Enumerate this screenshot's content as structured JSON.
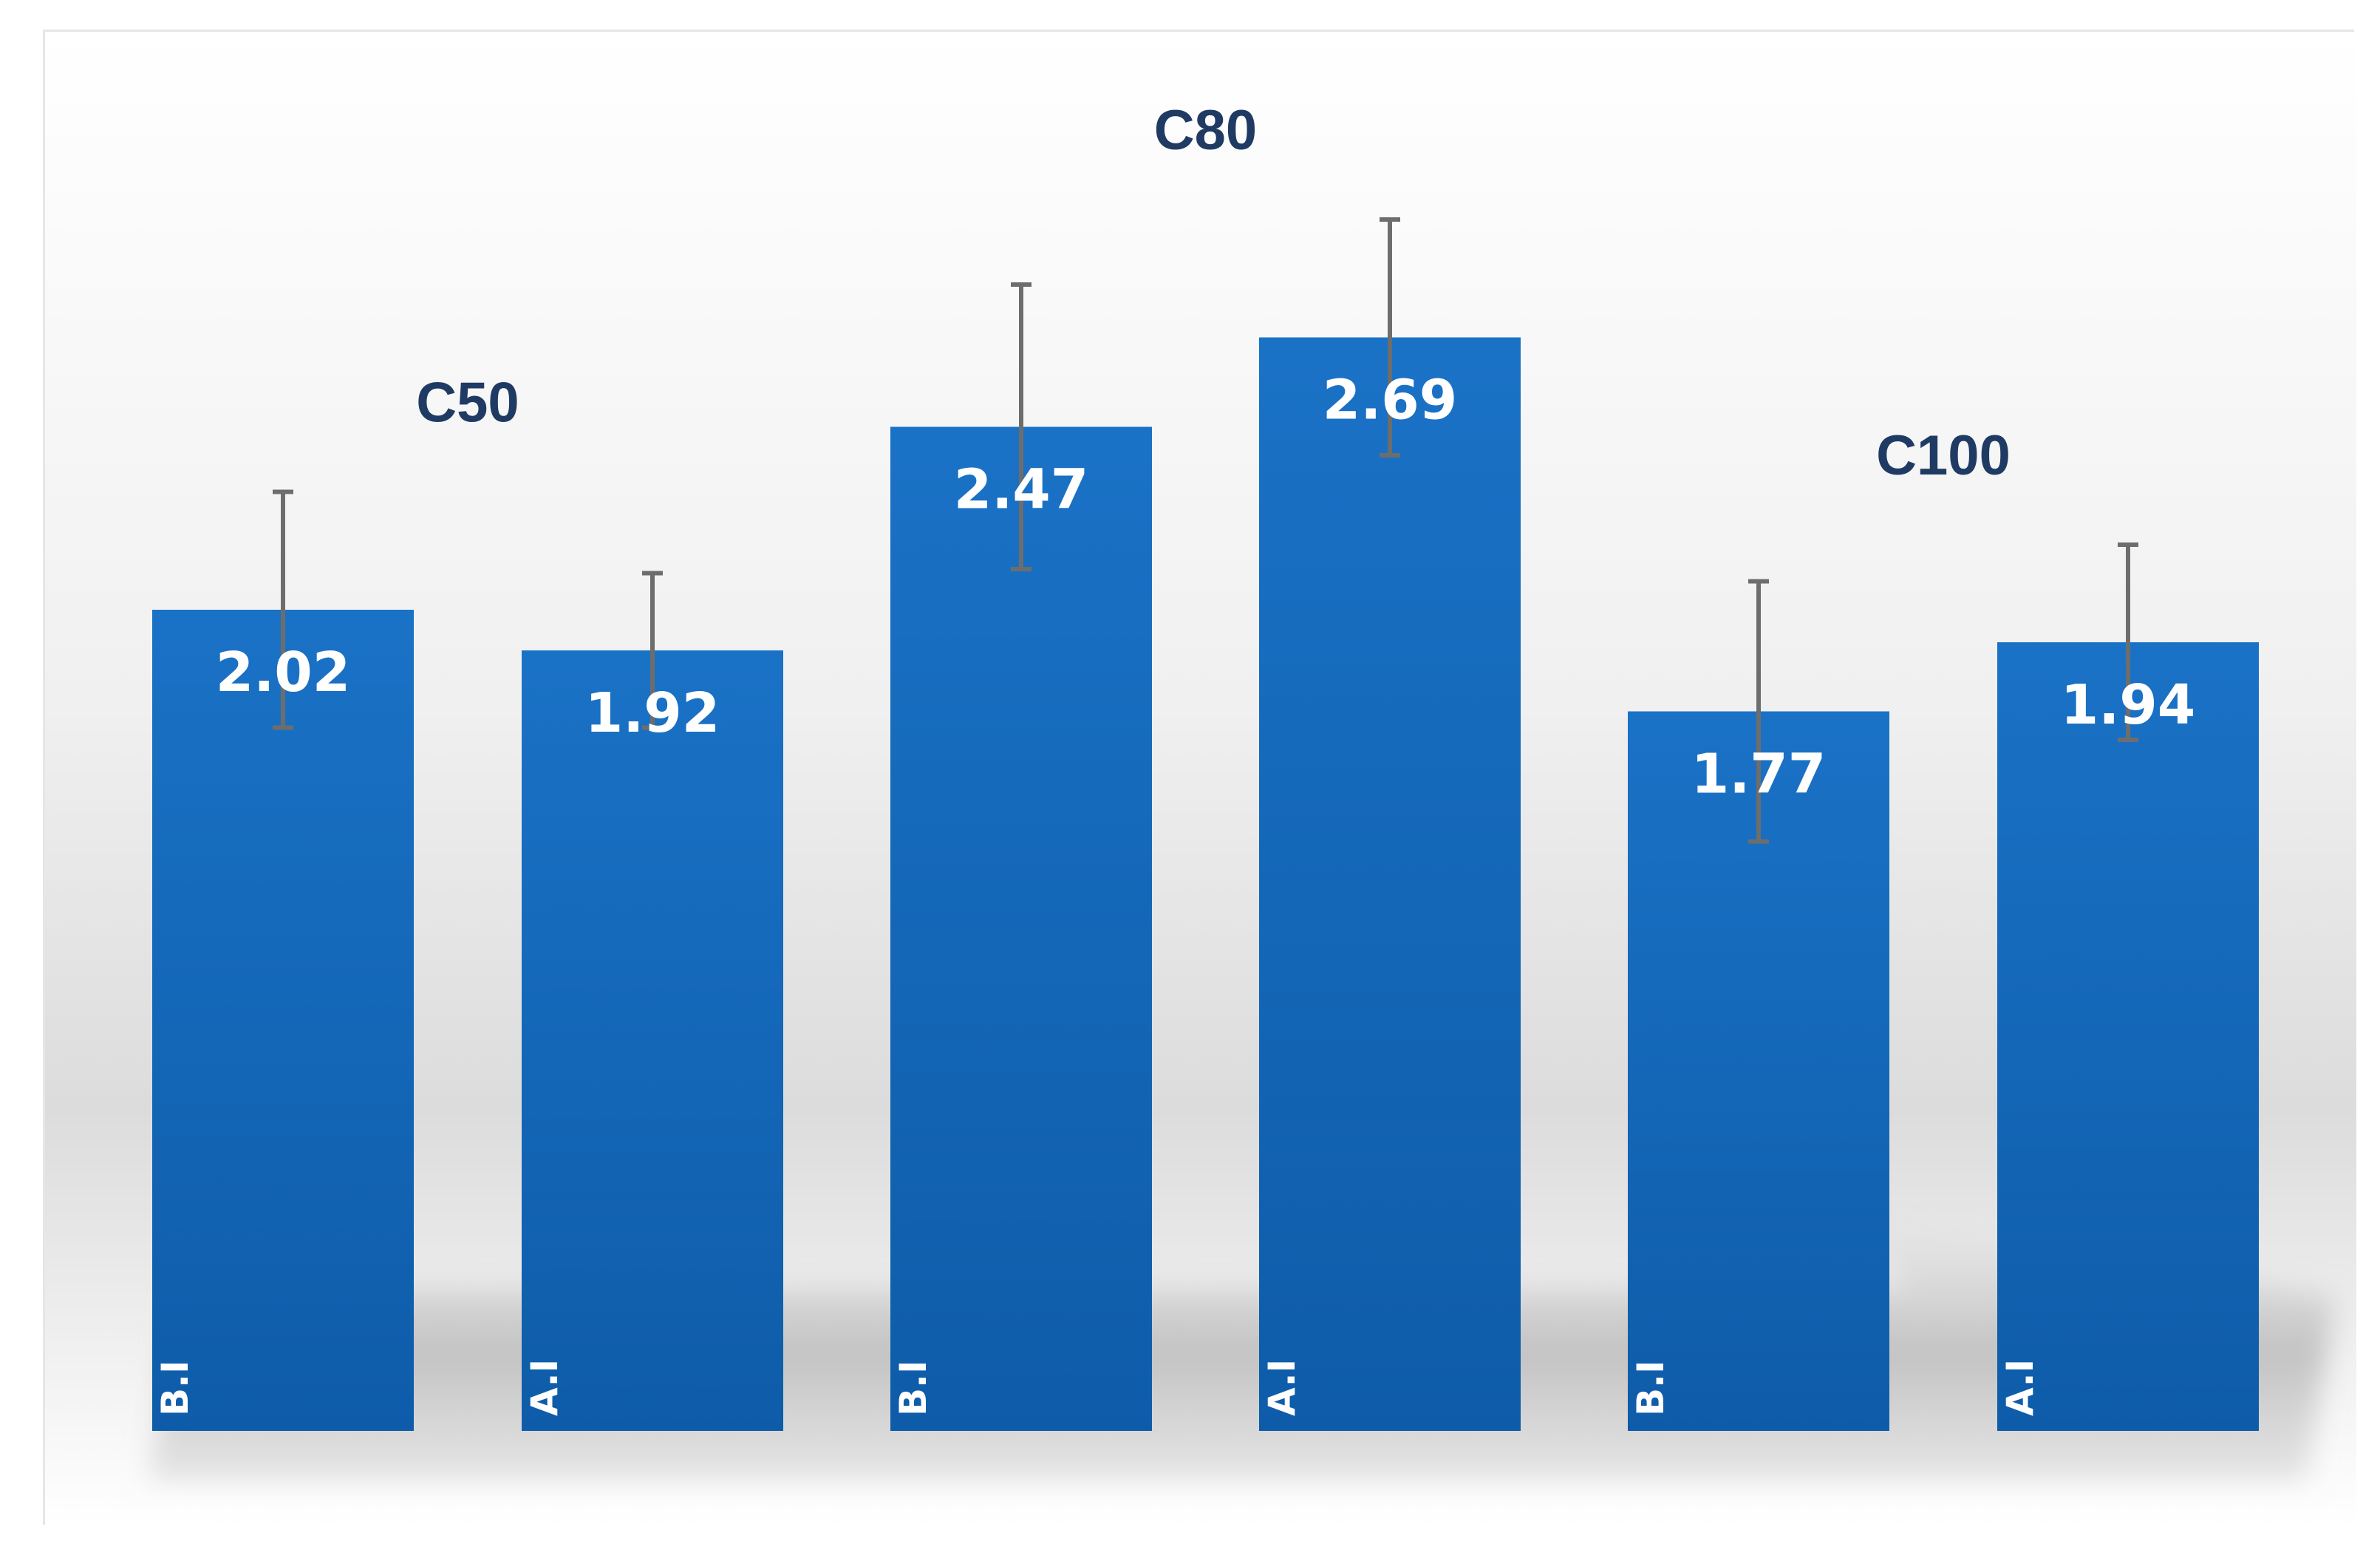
{
  "chart_data": {
    "type": "bar",
    "title": "",
    "xlabel": "",
    "ylabel": "",
    "ylim": [
      0,
      3.5
    ],
    "grid": false,
    "legend": "none",
    "groups": [
      {
        "name": "C50",
        "bars": [
          {
            "category": "B.I",
            "value": 2.02,
            "error": 0.29
          },
          {
            "category": "A.I",
            "value": 1.92,
            "error": 0.19
          }
        ]
      },
      {
        "name": "C80",
        "bars": [
          {
            "category": "B.I",
            "value": 2.47,
            "error": 0.35
          },
          {
            "category": "A.I",
            "value": 2.69,
            "error": 0.29
          }
        ]
      },
      {
        "name": "C100",
        "bars": [
          {
            "category": "B.I",
            "value": 1.77,
            "error": 0.32
          },
          {
            "category": "A.I",
            "value": 1.94,
            "error": 0.24
          }
        ]
      }
    ],
    "colors": {
      "bar_top": "#1a72c6",
      "bar_bottom": "#0e5ca9",
      "error_bar": "#6d6d6d",
      "group_label": "#1f3b63",
      "value_label": "#ffffff"
    }
  }
}
